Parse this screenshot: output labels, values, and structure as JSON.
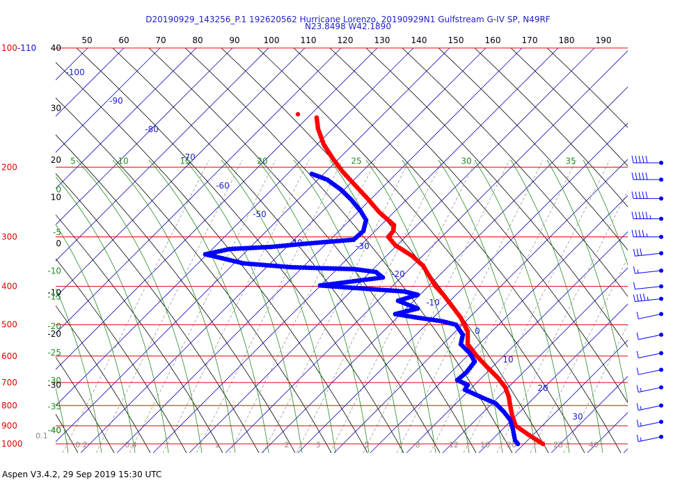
{
  "page": {
    "title_line1": "D20190929_143256_P.1 192620562 Hurricane Lorenzo, 20190929N1 Gulfstream G-IV SP, N49RF",
    "title_line2": "N23.8498 W42.1890",
    "footer": "Aspen V3.4.2, 29 Sep 2019  15:30 UTC"
  },
  "colors": {
    "isobar": "#e00000",
    "isotherm": "#1010c0",
    "dry_adiabat": "#000000",
    "moist_adiabat": "#228b22",
    "mixing_ratio": "#888888",
    "temperature": "#ff0000",
    "dewpoint": "#0000ff",
    "text_blue": "#2020c8",
    "text_green": "#228b22"
  },
  "chart_data": {
    "type": "skew-t",
    "pressure_ylim": [
      1000,
      100
    ],
    "isobars": [
      100,
      200,
      300,
      400,
      500,
      600,
      700,
      800,
      900,
      1000
    ],
    "pressure_labels": [
      "100-110",
      "200",
      "300",
      "400",
      "500",
      "600",
      "700",
      "800",
      "900",
      "1000"
    ],
    "top_ticks": [
      "50",
      "60",
      "70",
      "80",
      "90",
      "100",
      "110",
      "120",
      "130",
      "140",
      "150",
      "160",
      "170",
      "180",
      "190"
    ],
    "left_black_labels": [
      {
        "t": "40",
        "p": 100
      },
      {
        "t": "30",
        "p": 142
      },
      {
        "t": "20",
        "p": 192
      },
      {
        "t": "10",
        "p": 238
      },
      {
        "t": "0",
        "p": 312
      },
      {
        "t": "-10",
        "p": 415
      },
      {
        "t": "-20",
        "p": 528
      },
      {
        "t": "-30",
        "p": 710
      },
      {
        "t": "-40",
        "p": 925
      }
    ],
    "left_green_labels": [
      {
        "t": "0",
        "p": 228
      },
      {
        "t": "-5",
        "p": 292
      },
      {
        "t": "-10",
        "p": 366
      },
      {
        "t": "-15",
        "p": 425
      },
      {
        "t": "-20",
        "p": 505
      },
      {
        "t": "-25",
        "p": 588
      },
      {
        "t": "-30",
        "p": 692
      },
      {
        "t": "-35",
        "p": 806
      },
      {
        "t": "-40",
        "p": 925
      }
    ],
    "theta_e_labels": [
      {
        "t": "5",
        "x": 105
      },
      {
        "t": "10",
        "x": 177
      },
      {
        "t": "15",
        "x": 266
      },
      {
        "t": "20",
        "x": 377
      },
      {
        "t": "25",
        "x": 512
      },
      {
        "t": "30",
        "x": 670
      },
      {
        "t": "35",
        "x": 820
      }
    ],
    "isotherm_labels": [
      {
        "t": "-100",
        "x": 108,
        "y": 108
      },
      {
        "t": "-90",
        "x": 167,
        "y": 149
      },
      {
        "t": "-80",
        "x": 218,
        "y": 190
      },
      {
        "t": "-70",
        "x": 271,
        "y": 230
      },
      {
        "t": "-60",
        "x": 320,
        "y": 271
      },
      {
        "t": "-50",
        "x": 373,
        "y": 312
      },
      {
        "t": "-40",
        "x": 425,
        "y": 353
      },
      {
        "t": "-30",
        "x": 521,
        "y": 358
      },
      {
        "t": "-20",
        "x": 572,
        "y": 398
      },
      {
        "t": "-10",
        "x": 622,
        "y": 439
      },
      {
        "t": "0",
        "x": 686,
        "y": 480
      },
      {
        "t": "10",
        "x": 730,
        "y": 521
      },
      {
        "t": "20",
        "x": 780,
        "y": 562
      },
      {
        "t": "30",
        "x": 830,
        "y": 603
      }
    ],
    "mixing_ratio_labels": [
      "0.1",
      "0.2",
      "0.4",
      "1",
      "2",
      "3",
      "5",
      "8",
      "12",
      "16",
      "20",
      "28",
      "40"
    ],
    "temperature_profile": [
      {
        "p": 150,
        "x": 455
      },
      {
        "p": 160,
        "x": 457
      },
      {
        "p": 175,
        "x": 465
      },
      {
        "p": 190,
        "x": 478
      },
      {
        "p": 205,
        "x": 492
      },
      {
        "p": 220,
        "x": 508
      },
      {
        "p": 240,
        "x": 528
      },
      {
        "p": 260,
        "x": 545
      },
      {
        "p": 280,
        "x": 566
      },
      {
        "p": 290,
        "x": 565
      },
      {
        "p": 300,
        "x": 558
      },
      {
        "p": 315,
        "x": 568
      },
      {
        "p": 335,
        "x": 592
      },
      {
        "p": 355,
        "x": 608
      },
      {
        "p": 375,
        "x": 616
      },
      {
        "p": 400,
        "x": 626
      },
      {
        "p": 420,
        "x": 637
      },
      {
        "p": 450,
        "x": 650
      },
      {
        "p": 480,
        "x": 662
      },
      {
        "p": 520,
        "x": 672
      },
      {
        "p": 560,
        "x": 672
      },
      {
        "p": 600,
        "x": 685
      },
      {
        "p": 640,
        "x": 700
      },
      {
        "p": 680,
        "x": 715
      },
      {
        "p": 720,
        "x": 726
      },
      {
        "p": 760,
        "x": 731
      },
      {
        "p": 800,
        "x": 733
      },
      {
        "p": 850,
        "x": 736
      },
      {
        "p": 900,
        "x": 741
      },
      {
        "p": 950,
        "x": 760
      },
      {
        "p": 1000,
        "x": 780
      }
    ],
    "dewpoint_profile": [
      {
        "p": 208,
        "x": 448
      },
      {
        "p": 215,
        "x": 470
      },
      {
        "p": 228,
        "x": 490
      },
      {
        "p": 242,
        "x": 505
      },
      {
        "p": 258,
        "x": 518
      },
      {
        "p": 272,
        "x": 526
      },
      {
        "p": 290,
        "x": 522
      },
      {
        "p": 305,
        "x": 508
      },
      {
        "p": 312,
        "x": 440
      },
      {
        "p": 318,
        "x": 390
      },
      {
        "p": 322,
        "x": 330
      },
      {
        "p": 332,
        "x": 295
      },
      {
        "p": 340,
        "x": 320
      },
      {
        "p": 350,
        "x": 350
      },
      {
        "p": 358,
        "x": 420
      },
      {
        "p": 362,
        "x": 510
      },
      {
        "p": 368,
        "x": 540
      },
      {
        "p": 380,
        "x": 550
      },
      {
        "p": 398,
        "x": 460
      },
      {
        "p": 405,
        "x": 520
      },
      {
        "p": 412,
        "x": 580
      },
      {
        "p": 420,
        "x": 600
      },
      {
        "p": 435,
        "x": 572
      },
      {
        "p": 455,
        "x": 600
      },
      {
        "p": 470,
        "x": 568
      },
      {
        "p": 480,
        "x": 600
      },
      {
        "p": 490,
        "x": 635
      },
      {
        "p": 500,
        "x": 655
      },
      {
        "p": 530,
        "x": 665
      },
      {
        "p": 560,
        "x": 662
      },
      {
        "p": 590,
        "x": 675
      },
      {
        "p": 620,
        "x": 682
      },
      {
        "p": 660,
        "x": 670
      },
      {
        "p": 690,
        "x": 657
      },
      {
        "p": 710,
        "x": 672
      },
      {
        "p": 730,
        "x": 668
      },
      {
        "p": 760,
        "x": 690
      },
      {
        "p": 790,
        "x": 712
      },
      {
        "p": 830,
        "x": 724
      },
      {
        "p": 870,
        "x": 733
      },
      {
        "p": 920,
        "x": 737
      },
      {
        "p": 980,
        "x": 740
      },
      {
        "p": 1000,
        "x": 744
      }
    ],
    "stray_points": [
      {
        "p": 147,
        "x": 428,
        "series": "temperature"
      }
    ],
    "wind_barbs": [
      {
        "p": 195,
        "spd": 50
      },
      {
        "p": 215,
        "spd": 50
      },
      {
        "p": 240,
        "spd": 50
      },
      {
        "p": 270,
        "spd": 55
      },
      {
        "p": 300,
        "spd": 45
      },
      {
        "p": 330,
        "spd": 30
      },
      {
        "p": 365,
        "spd": 15
      },
      {
        "p": 400,
        "spd": 10
      },
      {
        "p": 430,
        "spd": 45
      },
      {
        "p": 470,
        "spd": 10
      },
      {
        "p": 530,
        "spd": 10
      },
      {
        "p": 590,
        "spd": 10
      },
      {
        "p": 650,
        "spd": 10
      },
      {
        "p": 720,
        "spd": 15
      },
      {
        "p": 800,
        "spd": 15
      },
      {
        "p": 880,
        "spd": 15
      },
      {
        "p": 960,
        "spd": 15
      }
    ]
  }
}
